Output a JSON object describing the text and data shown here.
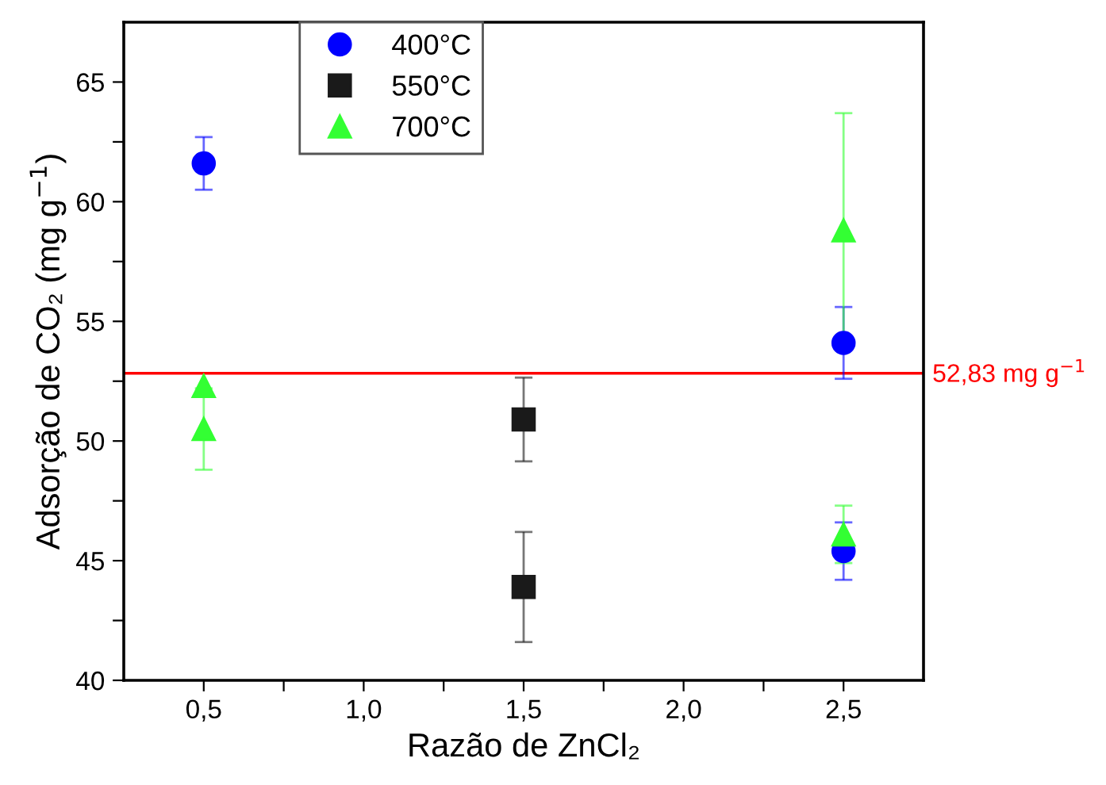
{
  "chart_data": {
    "type": "scatter",
    "xlabel": "Razão de ZnCl₂",
    "ylabel": "Adsorção de CO₂ (mg g$^{−1}$)",
    "xlim": [
      0.25,
      2.75
    ],
    "ylim": [
      40,
      67.5
    ],
    "xticks": [
      {
        "value": 0.5,
        "label": "0,5"
      },
      {
        "value": 0.75,
        "label": null
      },
      {
        "value": 1.0,
        "label": "1,0"
      },
      {
        "value": 1.25,
        "label": null
      },
      {
        "value": 1.5,
        "label": "1,5"
      },
      {
        "value": 1.75,
        "label": null
      },
      {
        "value": 2.0,
        "label": "2,0"
      },
      {
        "value": 2.25,
        "label": null
      },
      {
        "value": 2.5,
        "label": "2,5"
      }
    ],
    "yticks": [
      40,
      {
        "value": 42.5,
        "label": null
      },
      45,
      {
        "value": 47.5,
        "label": null
      },
      50,
      {
        "value": 52.5,
        "label": null
      },
      55,
      {
        "value": 57.5,
        "label": null
      },
      60,
      {
        "value": 62.5,
        "label": null
      },
      65
    ],
    "grid": false,
    "legend": "top left",
    "series": [
      {
        "name": "400°C",
        "color": "#0000ff",
        "marker": "circle",
        "x": [
          0.5,
          2.5,
          2.5
        ],
        "values": [
          61.6,
          54.1,
          45.4
        ],
        "errors": [
          1.1,
          1.5,
          1.2
        ]
      },
      {
        "name": "550°C",
        "color": "#1a1a1a",
        "marker": "square",
        "x": [
          1.5,
          1.5
        ],
        "values": [
          50.9,
          43.9
        ],
        "errors": [
          1.75,
          2.3
        ]
      },
      {
        "name": "700°C",
        "color": "#33ff33",
        "marker": "triangle",
        "x": [
          0.5,
          0.5,
          2.5,
          2.5
        ],
        "values": [
          52.3,
          50.5,
          58.8,
          46.1
        ],
        "errors": [
          null,
          1.7,
          4.9,
          1.2
        ]
      }
    ],
    "ref_lines": [
      {
        "axis": "y",
        "value": 52.83,
        "label": "52,83 mg g$^{−1}$",
        "color": "#ff0000"
      }
    ]
  }
}
